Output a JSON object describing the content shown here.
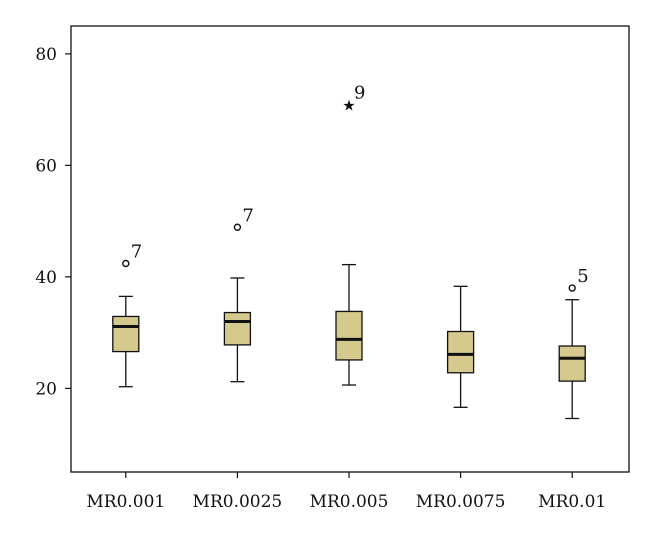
{
  "chart_data": {
    "type": "boxplot",
    "title": "",
    "xlabel": "",
    "ylabel": "",
    "ylim": [
      5,
      85
    ],
    "yticks": [
      20,
      40,
      60,
      80
    ],
    "ytick_labels": [
      "20",
      "40",
      "60",
      "80"
    ],
    "grid": false,
    "box_color": "#d6c98e",
    "categories": [
      "MR0.001",
      "MR0.0025",
      "MR0.005",
      "MR0.0075",
      "MR0.01"
    ],
    "boxes": [
      {
        "whisker_low": 20.3,
        "q1": 26.6,
        "median": 31.1,
        "q3": 32.9,
        "whisker_high": 36.5,
        "outliers": [
          {
            "value": 42.4,
            "marker": "circle",
            "label": "7"
          }
        ]
      },
      {
        "whisker_low": 21.2,
        "q1": 27.8,
        "median": 32.0,
        "q3": 33.6,
        "whisker_high": 39.8,
        "outliers": [
          {
            "value": 48.9,
            "marker": "circle",
            "label": "7"
          }
        ]
      },
      {
        "whisker_low": 20.6,
        "q1": 25.1,
        "median": 28.8,
        "q3": 33.8,
        "whisker_high": 42.2,
        "outliers": [
          {
            "value": 70.9,
            "marker": "star",
            "label": "9"
          }
        ]
      },
      {
        "whisker_low": 16.6,
        "q1": 22.8,
        "median": 26.1,
        "q3": 30.2,
        "whisker_high": 38.3,
        "outliers": []
      },
      {
        "whisker_low": 14.6,
        "q1": 21.3,
        "median": 25.4,
        "q3": 27.6,
        "whisker_high": 35.9,
        "outliers": [
          {
            "value": 38.0,
            "marker": "circle",
            "label": "5"
          }
        ]
      }
    ]
  }
}
